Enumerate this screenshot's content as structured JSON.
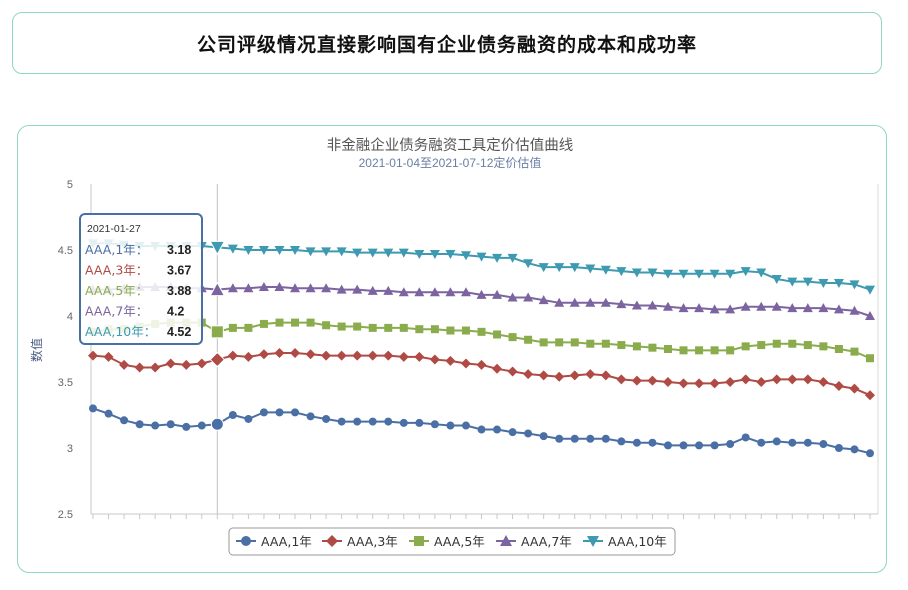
{
  "headline": "公司评级情况直接影响国有企业债务融资的成本和成功率",
  "chart_data": {
    "type": "line",
    "title": "非金融企业债务融资工具定价估值曲线",
    "subtitle": "2021-01-04至2021-07-12定价估值",
    "ylabel": "数值",
    "xlabel": "",
    "ylim": [
      2.5,
      5
    ],
    "yticks": [
      2.5,
      3,
      3.5,
      4,
      4.5,
      5
    ],
    "x_start": "2021-01-04",
    "x_end": "2021-07-12",
    "legend_position": "bottom",
    "tooltip": {
      "date": "2021-01-27",
      "index": 8,
      "rows": [
        {
          "label": "AAA,1年",
          "value": "3.18"
        },
        {
          "label": "AAA,3年",
          "value": "3.67"
        },
        {
          "label": "AAA,5年",
          "value": "3.88"
        },
        {
          "label": "AAA,7年",
          "value": "4.2"
        },
        {
          "label": "AAA,10年",
          "value": "4.52"
        }
      ]
    },
    "series": [
      {
        "name": "AAA,1年",
        "color": "#4a6fa5",
        "marker": "circle",
        "values": [
          3.3,
          3.26,
          3.21,
          3.18,
          3.17,
          3.18,
          3.16,
          3.17,
          3.18,
          3.25,
          3.22,
          3.27,
          3.27,
          3.27,
          3.24,
          3.22,
          3.2,
          3.2,
          3.2,
          3.2,
          3.19,
          3.19,
          3.18,
          3.17,
          3.17,
          3.14,
          3.14,
          3.12,
          3.11,
          3.09,
          3.07,
          3.07,
          3.07,
          3.07,
          3.05,
          3.04,
          3.04,
          3.02,
          3.02,
          3.02,
          3.02,
          3.03,
          3.08,
          3.04,
          3.05,
          3.04,
          3.04,
          3.03,
          3.0,
          2.99,
          2.96
        ]
      },
      {
        "name": "AAA,3年",
        "color": "#b04a45",
        "marker": "diamond",
        "values": [
          3.7,
          3.69,
          3.63,
          3.61,
          3.61,
          3.64,
          3.63,
          3.64,
          3.67,
          3.7,
          3.69,
          3.71,
          3.72,
          3.72,
          3.71,
          3.7,
          3.7,
          3.7,
          3.7,
          3.7,
          3.69,
          3.69,
          3.67,
          3.66,
          3.64,
          3.63,
          3.6,
          3.58,
          3.56,
          3.55,
          3.54,
          3.55,
          3.56,
          3.55,
          3.52,
          3.51,
          3.51,
          3.5,
          3.49,
          3.49,
          3.49,
          3.5,
          3.52,
          3.5,
          3.52,
          3.52,
          3.52,
          3.5,
          3.47,
          3.45,
          3.4
        ]
      },
      {
        "name": "AAA,5年",
        "color": "#8aac4c",
        "marker": "square",
        "values": [
          3.88,
          3.9,
          3.9,
          3.92,
          3.94,
          3.95,
          3.95,
          3.95,
          3.88,
          3.91,
          3.91,
          3.94,
          3.95,
          3.95,
          3.95,
          3.93,
          3.92,
          3.92,
          3.91,
          3.91,
          3.91,
          3.9,
          3.9,
          3.89,
          3.89,
          3.88,
          3.86,
          3.84,
          3.82,
          3.8,
          3.8,
          3.8,
          3.79,
          3.79,
          3.78,
          3.77,
          3.76,
          3.75,
          3.74,
          3.74,
          3.74,
          3.74,
          3.77,
          3.78,
          3.79,
          3.79,
          3.78,
          3.77,
          3.75,
          3.73,
          3.68
        ]
      },
      {
        "name": "AAA,7年",
        "color": "#7b64a0",
        "marker": "triangle-up",
        "values": [
          4.2,
          4.2,
          4.21,
          4.22,
          4.22,
          4.22,
          4.21,
          4.21,
          4.2,
          4.21,
          4.21,
          4.22,
          4.22,
          4.21,
          4.21,
          4.21,
          4.2,
          4.2,
          4.19,
          4.19,
          4.18,
          4.18,
          4.18,
          4.18,
          4.18,
          4.16,
          4.16,
          4.14,
          4.14,
          4.12,
          4.1,
          4.1,
          4.1,
          4.1,
          4.09,
          4.08,
          4.08,
          4.07,
          4.06,
          4.06,
          4.05,
          4.05,
          4.07,
          4.07,
          4.07,
          4.06,
          4.06,
          4.06,
          4.05,
          4.04,
          4.0
        ]
      },
      {
        "name": "AAA,10年",
        "color": "#3e9ab0",
        "marker": "triangle-down",
        "values": [
          4.55,
          4.55,
          4.54,
          4.53,
          4.53,
          4.53,
          4.53,
          4.53,
          4.52,
          4.51,
          4.5,
          4.5,
          4.5,
          4.5,
          4.49,
          4.49,
          4.49,
          4.48,
          4.48,
          4.48,
          4.48,
          4.47,
          4.47,
          4.47,
          4.46,
          4.45,
          4.44,
          4.44,
          4.4,
          4.37,
          4.37,
          4.37,
          4.36,
          4.35,
          4.34,
          4.33,
          4.33,
          4.32,
          4.32,
          4.32,
          4.32,
          4.32,
          4.34,
          4.33,
          4.28,
          4.26,
          4.26,
          4.25,
          4.25,
          4.24,
          4.2
        ]
      }
    ]
  }
}
